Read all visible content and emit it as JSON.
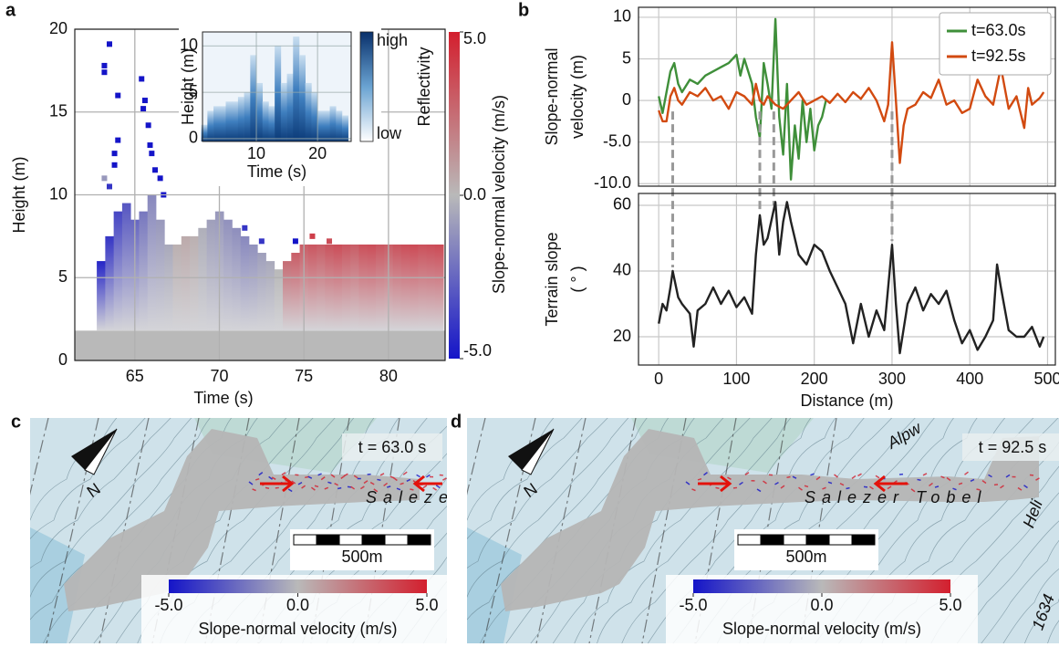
{
  "chart_data": [
    {
      "type": "heatmap",
      "panel": "a",
      "xlabel": "Time (s)",
      "ylabel": "Height (m)",
      "xlim": [
        61.45,
        83.35
      ],
      "ylim": [
        0,
        20
      ],
      "xticks": [
        65,
        70,
        75,
        80
      ],
      "yticks": [
        0,
        5,
        10,
        15,
        20
      ],
      "grid": true,
      "floor": 1.8,
      "columns": {
        "x": [
          63.0,
          63.5,
          64.0,
          64.5,
          65.0,
          65.5,
          66.0,
          66.5,
          67.0,
          67.5,
          68.0,
          68.5,
          69.0,
          69.5,
          70.0,
          70.5,
          71.0,
          71.5,
          72.0,
          72.5,
          73.0,
          73.5,
          74.0,
          74.5,
          75.0,
          75.5,
          76.0,
          76.5,
          77.0,
          77.5,
          78.0,
          78.5,
          79.0,
          79.5,
          80.0,
          80.5,
          81.0,
          81.5,
          82.0,
          82.5,
          83.0
        ],
        "top": [
          6,
          7.5,
          9,
          9.5,
          8.5,
          9,
          10,
          8.5,
          7,
          7,
          7.5,
          7.5,
          8,
          8.5,
          9,
          8.5,
          8,
          7.5,
          7,
          6.5,
          6,
          5.5,
          6,
          6.5,
          7,
          7,
          7,
          7,
          7,
          7,
          7,
          7,
          7,
          7,
          7,
          7,
          7,
          7,
          7,
          7,
          7
        ],
        "values": [
          -4.5,
          -4,
          -3.5,
          -3,
          -2.5,
          -2,
          -1.5,
          -1,
          -0.5,
          0.3,
          0.5,
          0.3,
          -0.3,
          -0.8,
          -1,
          -1.2,
          -1.3,
          -1.5,
          -1.2,
          -0.8,
          -0.5,
          0,
          2.5,
          3,
          3,
          3.2,
          3,
          3.3,
          3.5,
          3.2,
          3,
          3.4,
          3.5,
          3.2,
          3,
          3.3,
          3.5,
          3.6,
          3.4,
          3.5,
          3.6
        ]
      },
      "points": {
        "x": [
          63.5,
          63.2,
          63.2,
          64.0,
          64.0,
          63.8,
          63.8,
          63.2,
          63.5,
          65.4,
          65.6,
          65.5,
          65.8,
          65.9,
          66.0,
          66.2,
          66.5,
          66.7,
          71.5,
          72.5,
          74.5,
          75.5,
          76.5
        ],
        "y": [
          19.1,
          17.8,
          17.4,
          16.0,
          13.3,
          12.5,
          11.8,
          11.0,
          10.5,
          17.0,
          15.7,
          15.2,
          14.2,
          13.0,
          12.5,
          11.5,
          11.0,
          10.0,
          8.0,
          7.2,
          7.2,
          7.5,
          7.2
        ],
        "values": [
          -5,
          -5,
          -5,
          -5,
          -5,
          -5,
          -5,
          -1,
          -4,
          -5,
          -5,
          -5,
          -5,
          -5,
          -5,
          -5,
          -5,
          -5,
          -4,
          -4,
          -5,
          4,
          3.5
        ]
      },
      "colorbar": {
        "label": "Slope-normal velocity (m/s)",
        "clim": [
          -5,
          5
        ],
        "colors": [
          "#1414c8",
          "#b9b9b9",
          "#d31f2e"
        ],
        "ticks": [
          {
            "value": 5,
            "label": "5.0"
          },
          {
            "value": 0,
            "label": "0.0"
          },
          {
            "value": -5,
            "label": "-5.0"
          }
        ]
      },
      "inset": {
        "xlabel": "Time (s)",
        "ylabel": "Height (m)",
        "xlim": [
          1.2,
          25.5
        ],
        "ylim": [
          -0.3,
          11.5
        ],
        "xticks": [
          10,
          20
        ],
        "yticks": [
          0,
          5,
          10
        ],
        "grid": true,
        "x": [
          1.5,
          2.5,
          3.5,
          4.5,
          5.5,
          6.5,
          7.5,
          8.5,
          9.5,
          10.5,
          11.5,
          12.5,
          13.5,
          14.5,
          15.5,
          16.5,
          17.5,
          18.5,
          19.5,
          20.5,
          21.5,
          22.5,
          23.5,
          24.5
        ],
        "values": [
          1.5,
          3,
          3.5,
          3.5,
          4,
          4,
          4.5,
          5,
          9,
          6,
          4,
          3.5,
          10,
          6,
          7,
          11,
          9,
          6,
          5,
          3,
          3,
          3.5,
          3,
          2.5
        ],
        "colorbar": {
          "label": "Reflectivity",
          "high": "high",
          "low": "low"
        }
      }
    },
    {
      "type": "line",
      "panel": "b",
      "ylabel": [
        "Slope-normal",
        "velocity (m)"
      ],
      "xlim": [
        -26,
        510
      ],
      "ylim": [
        -10.3,
        11.2
      ],
      "xticks": [
        0,
        100,
        200,
        300,
        400,
        500
      ],
      "xtick_labels": false,
      "yticks": [
        10,
        5,
        0,
        {
          "value": -5,
          "label": "-5.0"
        },
        {
          "value": -10,
          "label": "-10.0"
        }
      ],
      "grid": true,
      "legend": "upper right",
      "series": [
        {
          "name": "t=63.0s",
          "color": "#3f8f3a",
          "x": [
            0,
            5,
            10,
            15,
            20,
            25,
            30,
            40,
            50,
            60,
            70,
            80,
            90,
            100,
            105,
            110,
            120,
            125,
            130,
            135,
            140,
            145,
            150,
            155,
            160,
            165,
            170,
            175,
            180,
            185,
            190,
            195,
            200,
            205,
            210,
            215
          ],
          "values": [
            0.5,
            -1.5,
            1,
            3.5,
            4.5,
            2,
            1,
            2.5,
            2,
            3,
            3.5,
            4,
            4.5,
            5.5,
            3,
            5,
            2,
            -2,
            -4.5,
            4.5,
            2,
            -1,
            9.8,
            -2,
            -6.5,
            2,
            -9.5,
            -3,
            -7,
            0,
            -5,
            -1,
            -6,
            -3,
            -2,
            0
          ]
        },
        {
          "name": "t=92.5s",
          "color": "#d24a10",
          "x": [
            0,
            5,
            10,
            15,
            20,
            25,
            30,
            40,
            50,
            60,
            70,
            80,
            90,
            100,
            110,
            120,
            125,
            130,
            135,
            140,
            150,
            160,
            170,
            180,
            190,
            200,
            210,
            220,
            230,
            240,
            250,
            260,
            270,
            280,
            290,
            295,
            300,
            305,
            310,
            315,
            320,
            330,
            340,
            350,
            360,
            370,
            380,
            390,
            400,
            410,
            420,
            430,
            440,
            450,
            460,
            470,
            475,
            480,
            490,
            495
          ],
          "values": [
            -1.2,
            -2.5,
            -2.5,
            0.5,
            1.5,
            0,
            -0.5,
            1,
            0.5,
            1.5,
            0,
            0.5,
            -1,
            1,
            0.5,
            -0.5,
            2,
            0,
            -0.5,
            0.5,
            -0.5,
            -1,
            0,
            1,
            -0.5,
            0,
            0.5,
            -0.3,
            0.8,
            -0.2,
            1,
            0.2,
            1.5,
            0,
            -2.5,
            -0.5,
            7,
            0,
            -7.5,
            -3,
            -1,
            -0.5,
            1,
            0.3,
            2.5,
            -0.5,
            0,
            -1.5,
            -1,
            2.5,
            0.5,
            -0.5,
            4,
            -1,
            0.5,
            -3.3,
            1.5,
            -0.5,
            0.3,
            1
          ]
        }
      ]
    },
    {
      "type": "line",
      "xlabel": "Distance (m)",
      "ylabel": [
        "Terrain slope",
        "( ° )"
      ],
      "xlim": [
        -26,
        510
      ],
      "ylim": [
        11.4,
        63.6
      ],
      "xticks": [
        0,
        100,
        200,
        300,
        400,
        500
      ],
      "yticks": [
        20,
        40,
        60
      ],
      "grid": true,
      "connectors": [
        18,
        130,
        148,
        300
      ],
      "series": [
        {
          "color": "#222222",
          "x": [
            0,
            5,
            10,
            15,
            18,
            25,
            30,
            40,
            45,
            50,
            60,
            70,
            80,
            90,
            100,
            110,
            120,
            125,
            130,
            135,
            140,
            150,
            155,
            160,
            165,
            170,
            180,
            190,
            200,
            210,
            220,
            230,
            240,
            250,
            260,
            270,
            280,
            290,
            300,
            305,
            310,
            320,
            330,
            340,
            350,
            360,
            370,
            380,
            390,
            400,
            410,
            420,
            430,
            435,
            440,
            450,
            460,
            470,
            480,
            490,
            495
          ],
          "values": [
            24,
            30,
            28,
            35,
            40,
            32,
            30,
            27,
            17,
            28,
            30,
            35,
            30,
            34,
            29,
            32,
            27,
            45,
            57,
            48,
            50,
            61,
            45,
            55,
            61,
            55,
            45,
            42,
            48,
            46,
            40,
            35,
            30,
            18,
            30,
            20,
            28,
            22,
            48,
            30,
            15,
            30,
            35,
            28,
            33,
            30,
            34,
            25,
            18,
            22,
            16,
            20,
            25,
            42,
            35,
            22,
            20,
            20,
            23,
            17,
            20
          ]
        }
      ]
    },
    {
      "type": "map",
      "panel": "c",
      "time_label": "t = 63.0 s",
      "place_label": "Salezer Tobel",
      "north": "N",
      "scale_label": "500m",
      "colorbar": {
        "label": "Slope-normal velocity (m/s)",
        "clim": [
          -5,
          5
        ],
        "colors": [
          "#1414c8",
          "#b9b9b9",
          "#d31f2e"
        ],
        "ticks": [
          {
            "value": -5,
            "label": "-5.0"
          },
          {
            "value": 0,
            "label": "0.0"
          },
          {
            "value": 5,
            "label": "5.0"
          }
        ]
      }
    },
    {
      "type": "map",
      "panel": "d",
      "time_label": "t = 92.5 s",
      "place_label": "Salezer Tobel",
      "north": "N",
      "scale_label": "500m",
      "labels": [
        "Alpw",
        "Heli",
        "1634"
      ],
      "colorbar": {
        "label": "Slope-normal velocity (m/s)",
        "clim": [
          -5,
          5
        ],
        "colors": [
          "#1414c8",
          "#b9b9b9",
          "#d31f2e"
        ],
        "ticks": [
          {
            "value": -5,
            "label": "-5.0"
          },
          {
            "value": 0,
            "label": "0.0"
          },
          {
            "value": 5,
            "label": "5.0"
          }
        ]
      }
    }
  ]
}
